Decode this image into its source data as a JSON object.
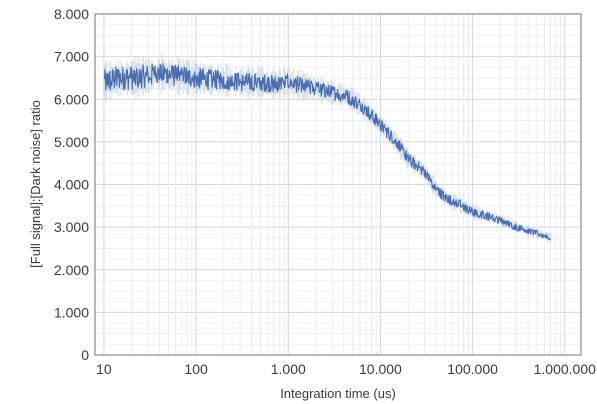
{
  "chart_data": {
    "type": "line",
    "title": "",
    "xlabel": "Integration time (us)",
    "ylabel": "[Full signal]:[Dark noise] ratio",
    "x_scale": "log",
    "xlim": [
      8,
      1500000
    ],
    "ylim": [
      0,
      8000
    ],
    "x_ticks": [
      {
        "value": 10,
        "label": "10"
      },
      {
        "value": 100,
        "label": "100"
      },
      {
        "value": 1000,
        "label": "1.000"
      },
      {
        "value": 10000,
        "label": "10.000"
      },
      {
        "value": 100000,
        "label": "100.000"
      },
      {
        "value": 1000000,
        "label": "1.000.000"
      }
    ],
    "y_ticks": [
      {
        "value": 0,
        "label": "0"
      },
      {
        "value": 1000,
        "label": "1.000"
      },
      {
        "value": 2000,
        "label": "2.000"
      },
      {
        "value": 3000,
        "label": "3.000"
      },
      {
        "value": 4000,
        "label": "4.000"
      },
      {
        "value": 5000,
        "label": "5.000"
      },
      {
        "value": 6000,
        "label": "6.000"
      },
      {
        "value": 7000,
        "label": "7.000"
      },
      {
        "value": 8000,
        "label": "8.000"
      }
    ],
    "grid": true,
    "series": [
      {
        "color": "#3a62a8",
        "x": [
          10,
          15,
          20,
          30,
          40,
          60,
          100,
          150,
          200,
          300,
          500,
          700,
          1000,
          1500,
          2000,
          3000,
          4000,
          5000,
          7000,
          10000,
          15000,
          20000,
          30000,
          40000,
          50000,
          70000,
          100000,
          150000,
          200000,
          300000,
          500000,
          700000
        ],
        "y": [
          6400,
          6500,
          6500,
          6550,
          6600,
          6550,
          6500,
          6450,
          6450,
          6400,
          6400,
          6350,
          6400,
          6300,
          6250,
          6150,
          6100,
          6000,
          5750,
          5400,
          5000,
          4600,
          4300,
          3900,
          3700,
          3550,
          3350,
          3250,
          3150,
          3000,
          2850,
          2750
        ]
      }
    ]
  }
}
